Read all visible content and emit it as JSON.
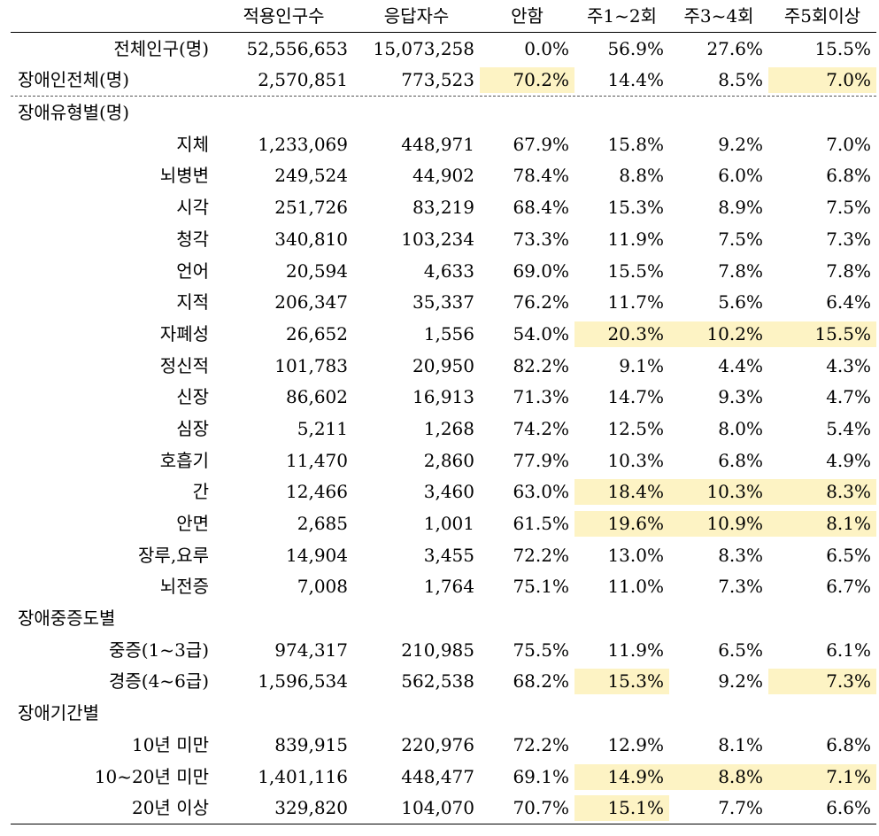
{
  "headers": [
    "",
    "적용인구수",
    "응답자수",
    "안함",
    "주1~2회",
    "주3~4회",
    "주5회이상"
  ],
  "rows": [
    {
      "kind": "data",
      "label": "전체인구(명)",
      "cells": [
        "52,556,653",
        "15,073,258",
        "0.0%",
        "56.9%",
        "27.6%",
        "15.5%"
      ],
      "hl": [
        false,
        false,
        false,
        false,
        false,
        false
      ]
    },
    {
      "kind": "data",
      "label": "장애인전체(명)",
      "cells": [
        "2,570,851",
        "773,523",
        "70.2%",
        "14.4%",
        "8.5%",
        "7.0%"
      ],
      "hl": [
        false,
        false,
        true,
        false,
        false,
        true
      ],
      "rule": "dash",
      "labelLeft": true
    },
    {
      "kind": "section",
      "label": "장애유형별(명)"
    },
    {
      "kind": "data",
      "label": "지체",
      "cells": [
        "1,233,069",
        "448,971",
        "67.9%",
        "15.8%",
        "9.2%",
        "7.0%"
      ],
      "hl": [
        false,
        false,
        false,
        false,
        false,
        false
      ]
    },
    {
      "kind": "data",
      "label": "뇌병변",
      "cells": [
        "249,524",
        "44,902",
        "78.4%",
        "8.8%",
        "6.0%",
        "6.8%"
      ],
      "hl": [
        false,
        false,
        false,
        false,
        false,
        false
      ]
    },
    {
      "kind": "data",
      "label": "시각",
      "cells": [
        "251,726",
        "83,219",
        "68.4%",
        "15.3%",
        "8.9%",
        "7.5%"
      ],
      "hl": [
        false,
        false,
        false,
        false,
        false,
        false
      ]
    },
    {
      "kind": "data",
      "label": "청각",
      "cells": [
        "340,810",
        "103,234",
        "73.3%",
        "11.9%",
        "7.5%",
        "7.3%"
      ],
      "hl": [
        false,
        false,
        false,
        false,
        false,
        false
      ]
    },
    {
      "kind": "data",
      "label": "언어",
      "cells": [
        "20,594",
        "4,633",
        "69.0%",
        "15.5%",
        "7.8%",
        "7.8%"
      ],
      "hl": [
        false,
        false,
        false,
        false,
        false,
        false
      ]
    },
    {
      "kind": "data",
      "label": "지적",
      "cells": [
        "206,347",
        "35,337",
        "76.2%",
        "11.7%",
        "5.6%",
        "6.4%"
      ],
      "hl": [
        false,
        false,
        false,
        false,
        false,
        false
      ]
    },
    {
      "kind": "data",
      "label": "자폐성",
      "cells": [
        "26,652",
        "1,556",
        "54.0%",
        "20.3%",
        "10.2%",
        "15.5%"
      ],
      "hl": [
        false,
        false,
        false,
        true,
        true,
        true
      ]
    },
    {
      "kind": "data",
      "label": "정신적",
      "cells": [
        "101,783",
        "20,950",
        "82.2%",
        "9.1%",
        "4.4%",
        "4.3%"
      ],
      "hl": [
        false,
        false,
        false,
        false,
        false,
        false
      ]
    },
    {
      "kind": "data",
      "label": "신장",
      "cells": [
        "86,602",
        "16,913",
        "71.3%",
        "14.7%",
        "9.3%",
        "4.7%"
      ],
      "hl": [
        false,
        false,
        false,
        false,
        false,
        false
      ]
    },
    {
      "kind": "data",
      "label": "심장",
      "cells": [
        "5,211",
        "1,268",
        "74.2%",
        "12.5%",
        "8.0%",
        "5.4%"
      ],
      "hl": [
        false,
        false,
        false,
        false,
        false,
        false
      ]
    },
    {
      "kind": "data",
      "label": "호흡기",
      "cells": [
        "11,470",
        "2,860",
        "77.9%",
        "10.3%",
        "6.8%",
        "4.9%"
      ],
      "hl": [
        false,
        false,
        false,
        false,
        false,
        false
      ]
    },
    {
      "kind": "data",
      "label": "간",
      "cells": [
        "12,466",
        "3,460",
        "63.0%",
        "18.4%",
        "10.3%",
        "8.3%"
      ],
      "hl": [
        false,
        false,
        false,
        true,
        true,
        true
      ]
    },
    {
      "kind": "data",
      "label": "안면",
      "cells": [
        "2,685",
        "1,001",
        "61.5%",
        "19.6%",
        "10.9%",
        "8.1%"
      ],
      "hl": [
        false,
        false,
        false,
        true,
        true,
        true
      ]
    },
    {
      "kind": "data",
      "label": "장루,요루",
      "cells": [
        "14,904",
        "3,455",
        "72.2%",
        "13.0%",
        "8.3%",
        "6.5%"
      ],
      "hl": [
        false,
        false,
        false,
        false,
        false,
        false
      ]
    },
    {
      "kind": "data",
      "label": "뇌전증",
      "cells": [
        "7,008",
        "1,764",
        "75.1%",
        "11.0%",
        "7.3%",
        "6.7%"
      ],
      "hl": [
        false,
        false,
        false,
        false,
        false,
        false
      ]
    },
    {
      "kind": "section",
      "label": "장애중증도별"
    },
    {
      "kind": "data",
      "label": "중증(1~3급)",
      "cells": [
        "974,317",
        "210,985",
        "75.5%",
        "11.9%",
        "6.5%",
        "6.1%"
      ],
      "hl": [
        false,
        false,
        false,
        false,
        false,
        false
      ]
    },
    {
      "kind": "data",
      "label": "경증(4~6급)",
      "cells": [
        "1,596,534",
        "562,538",
        "68.2%",
        "15.3%",
        "9.2%",
        "7.3%"
      ],
      "hl": [
        false,
        false,
        false,
        true,
        false,
        true
      ]
    },
    {
      "kind": "section",
      "label": "장애기간별"
    },
    {
      "kind": "data",
      "label": "10년 미만",
      "cells": [
        "839,915",
        "220,976",
        "72.2%",
        "12.9%",
        "8.1%",
        "6.8%"
      ],
      "hl": [
        false,
        false,
        false,
        false,
        false,
        false
      ]
    },
    {
      "kind": "data",
      "label": "10~20년 미만",
      "cells": [
        "1,401,116",
        "448,477",
        "69.1%",
        "14.9%",
        "8.8%",
        "7.1%"
      ],
      "hl": [
        false,
        false,
        false,
        true,
        true,
        true
      ]
    },
    {
      "kind": "data",
      "label": "20년 이상",
      "cells": [
        "329,820",
        "104,070",
        "70.7%",
        "15.1%",
        "7.7%",
        "6.6%"
      ],
      "hl": [
        false,
        false,
        false,
        true,
        false,
        false
      ],
      "rule": "bottom"
    }
  ]
}
